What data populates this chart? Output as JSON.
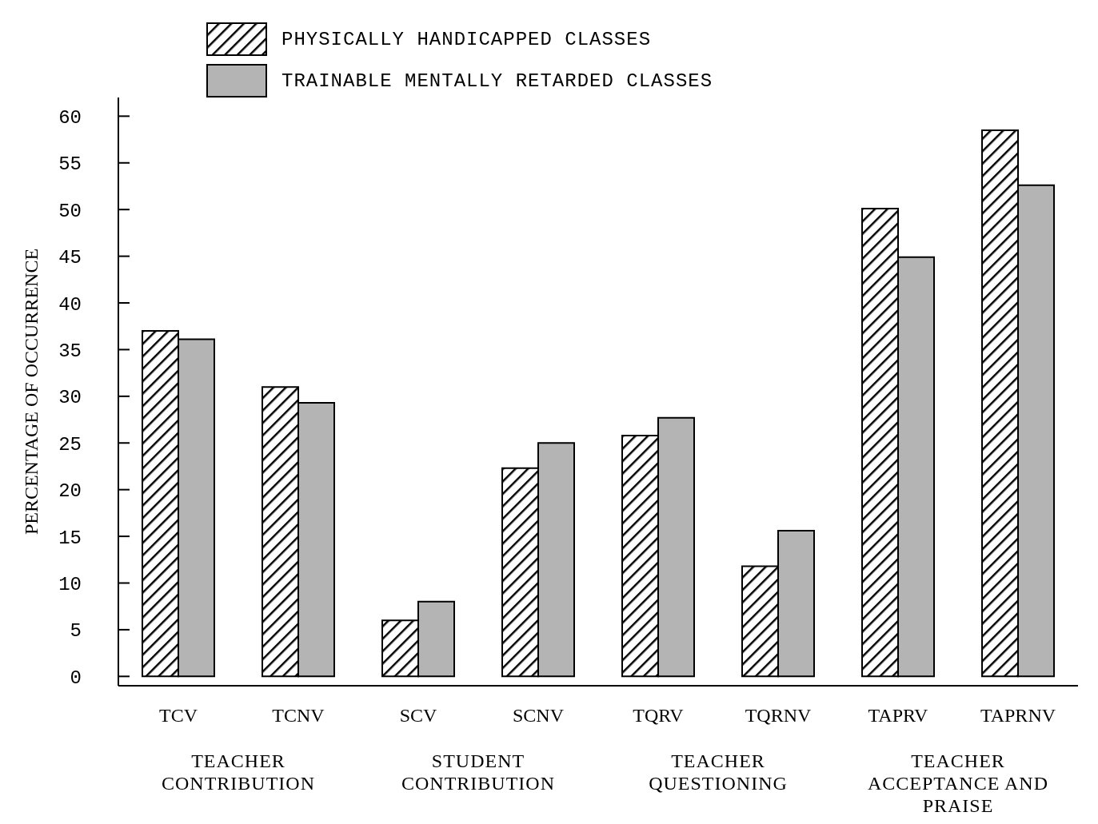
{
  "chart_data": {
    "type": "bar",
    "ylabel": "PERCENTAGE OF OCCURRENCE",
    "categories": [
      "TCV",
      "TCNV",
      "SCV",
      "SCNV",
      "TQRV",
      "TQRNV",
      "TAPRV",
      "TAPRNV"
    ],
    "series": [
      {
        "name": "PHYSICALLY HANDICAPPED CLASSES",
        "color": "#000000",
        "values": [
          37,
          31,
          6,
          22.3,
          25.8,
          11.8,
          50.1,
          58.5
        ]
      },
      {
        "name": "TRAINABLE MENTALLY RETARDED CLASSES",
        "color": "#b4b4b4",
        "values": [
          36.1,
          29.3,
          8,
          25,
          27.7,
          15.6,
          44.9,
          52.6
        ]
      }
    ],
    "ylim": [
      -1,
      62
    ],
    "yticks": [
      0,
      5,
      10,
      15,
      20,
      25,
      30,
      35,
      40,
      45,
      50,
      55,
      60
    ],
    "annotations": [
      "TEACHER CONTRIBUTION",
      "STUDENT CONTRIBUTION",
      "TEACHER QUESTIONING",
      "TEACHER ACCEPTANCE AND PRAISE"
    ],
    "legend": "top",
    "grid": false
  }
}
